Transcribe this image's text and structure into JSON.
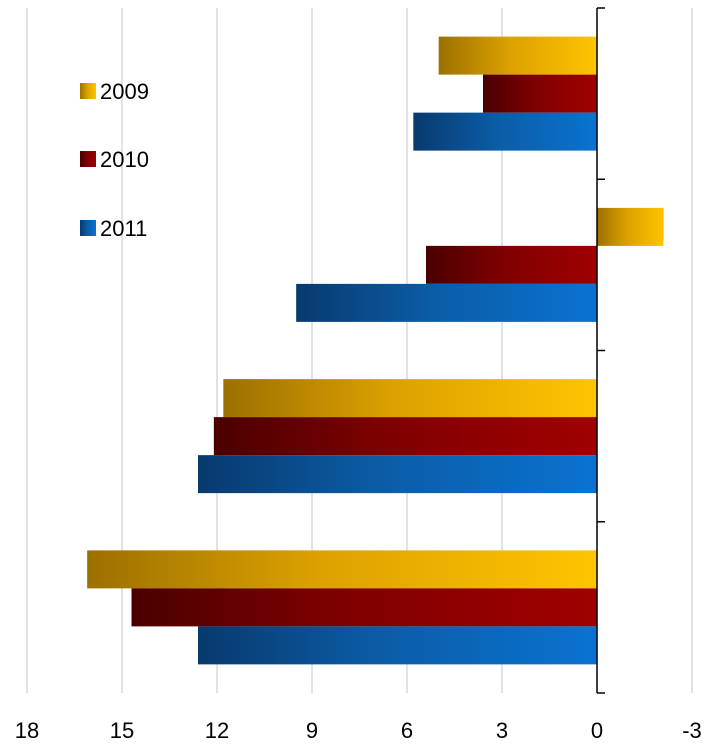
{
  "chart_data": {
    "type": "bar",
    "orientation": "horizontal",
    "x_axis_reversed": true,
    "categories": [
      "",
      "",
      "",
      ""
    ],
    "xlim": [
      -3,
      18
    ],
    "xticks": [
      18,
      15,
      12,
      9,
      6,
      3,
      0,
      -3
    ],
    "tick_labels": [
      "18",
      "15",
      "12",
      "9",
      "6",
      "3",
      "0",
      "-3"
    ],
    "grid": true,
    "legend_position": "top-left",
    "series": [
      {
        "name": "2009",
        "values": [
          5.0,
          -2.1,
          11.8,
          16.1
        ],
        "color": "#f5b800"
      },
      {
        "name": "2010",
        "values": [
          3.6,
          5.4,
          12.1,
          14.7
        ],
        "color": "#8b0000"
      },
      {
        "name": "2011",
        "values": [
          5.8,
          9.5,
          12.6,
          12.6
        ],
        "color": "#0a6fc4"
      }
    ]
  }
}
